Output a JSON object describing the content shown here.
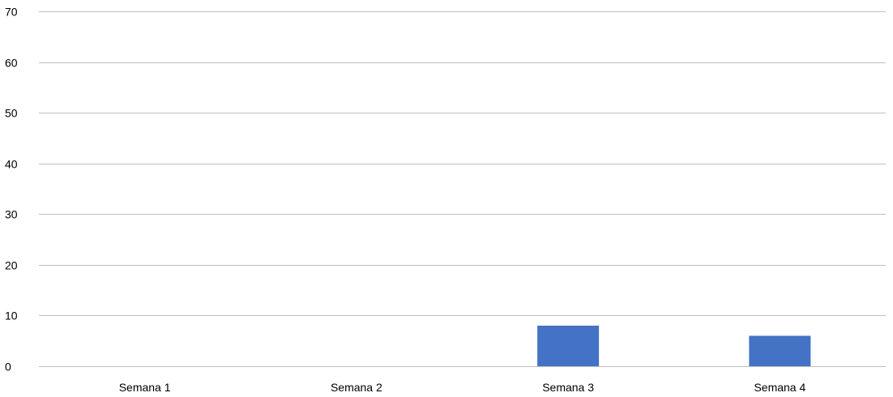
{
  "chart_data": {
    "type": "bar",
    "title": "",
    "xlabel": "",
    "ylabel": "",
    "categories": [
      "Semana 1",
      "Semana 2",
      "Semana 3",
      "Semana 4"
    ],
    "values": [
      0,
      0,
      8,
      6
    ],
    "ylim": [
      0,
      70
    ],
    "yticks": [
      0,
      10,
      20,
      30,
      40,
      50,
      60,
      70
    ],
    "grid": true,
    "legend": "none",
    "bar_color": "#4472C4",
    "grid_color": "#BFBFBF"
  }
}
